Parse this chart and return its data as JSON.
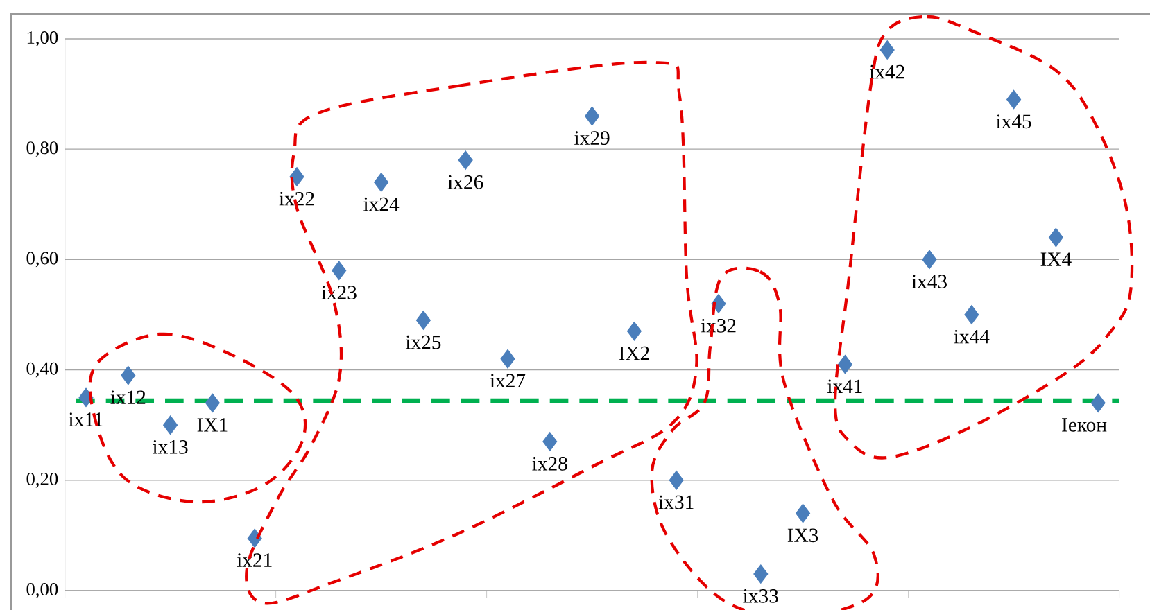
{
  "chart_data": {
    "type": "scatter",
    "categories": [
      null,
      null,
      null,
      null,
      null,
      null,
      null,
      null,
      null,
      null,
      null,
      null,
      null,
      null,
      null,
      null,
      null,
      null,
      null,
      null,
      null,
      null,
      null,
      null,
      null
    ],
    "values": [
      0.35,
      0.39,
      0.3,
      0.34,
      0.095,
      0.75,
      0.58,
      0.74,
      0.49,
      0.78,
      0.42,
      0.27,
      0.86,
      0.47,
      0.2,
      0.52,
      0.03,
      0.14,
      0.41,
      0.98,
      0.6,
      0.5,
      0.89,
      0.64,
      0.34
    ],
    "value_labels": [
      "ix11",
      "ix12",
      "ix13",
      "IX1",
      "ix21",
      "ix22",
      "ix23",
      "ix24",
      "ix25",
      "ix26",
      "ix27",
      "ix28",
      "ix29",
      "IX2",
      "ix31",
      "ix32",
      "ix33",
      "IX3",
      "ix41",
      "ix42",
      "ix43",
      "ix44",
      "ix45",
      "IX4",
      "Iекон"
    ],
    "color": "#4a7ebb",
    "marker": "diamond",
    "grid": "y",
    "tick_labels": "y",
    "ylim": [
      0,
      1
    ],
    "yticks": [
      {
        "value": 0,
        "label": "0,00"
      },
      {
        "value": 0.2,
        "label": "0,20"
      },
      {
        "value": 0.4,
        "label": "0,40"
      },
      {
        "value": 0.6,
        "label": "0,60"
      },
      {
        "value": 0.8,
        "label": "0,80"
      },
      {
        "value": 1,
        "label": "1,00"
      }
    ],
    "ref_lines": [
      {
        "axis": "y",
        "value": 0.344,
        "color": "#00b050",
        "line_style": "dashed"
      }
    ]
  }
}
